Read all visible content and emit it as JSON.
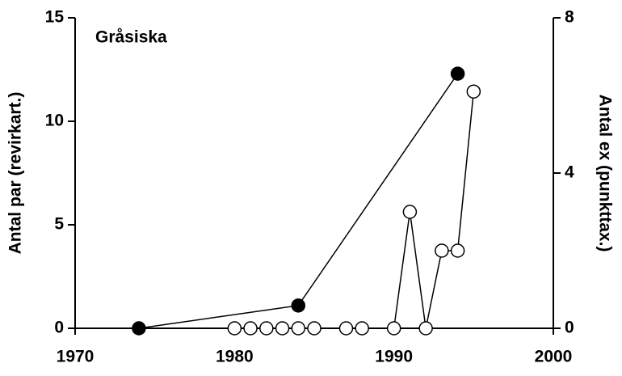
{
  "chart_data": {
    "type": "line",
    "title": "Gråsiska",
    "ylabel": "Antal par (revirkart.)",
    "y2label": "Antal ex (punkttax.)",
    "xlim": [
      1970,
      2000
    ],
    "xticks": [
      1970,
      1980,
      1990,
      2000
    ],
    "ylim": [
      0,
      15
    ],
    "yticks": [
      0,
      5,
      10,
      15
    ],
    "y2lim": [
      0,
      8
    ],
    "y2ticks": [
      0,
      4,
      8
    ],
    "series": [
      {
        "color": "#000000",
        "marker": "filled",
        "x": [
          1974,
          1984,
          1994
        ],
        "values": [
          0,
          1.1,
          12.3
        ]
      },
      {
        "color": "#000000",
        "marker": "open",
        "axis": "y2",
        "x": [
          1980,
          1981,
          1982,
          1983,
          1984,
          1985,
          1987,
          1988,
          1990,
          1991,
          1992,
          1993,
          1994,
          1995
        ],
        "values": [
          0,
          0,
          0,
          0,
          0,
          0,
          0,
          0,
          0,
          3,
          0,
          2,
          2,
          6.1
        ]
      }
    ]
  }
}
